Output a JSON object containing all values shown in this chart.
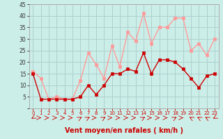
{
  "x": [
    0,
    1,
    2,
    3,
    4,
    5,
    6,
    7,
    8,
    9,
    10,
    11,
    12,
    13,
    14,
    15,
    16,
    17,
    18,
    19,
    20,
    21,
    22,
    23
  ],
  "mean_wind": [
    15,
    4,
    4,
    4,
    4,
    4,
    5,
    10,
    6,
    10,
    15,
    15,
    17,
    16,
    24,
    15,
    21,
    21,
    20,
    17,
    13,
    9,
    14,
    15
  ],
  "gust_wind": [
    16,
    13,
    4,
    5,
    4,
    4,
    12,
    24,
    19,
    13,
    27,
    18,
    33,
    29,
    41,
    28,
    35,
    35,
    39,
    39,
    25,
    28,
    23,
    30
  ],
  "xlabel": "Vent moyen/en rafales ( km/h )",
  "ylim": [
    0,
    45
  ],
  "yticks": [
    0,
    5,
    10,
    15,
    20,
    25,
    30,
    35,
    40,
    45
  ],
  "xticks": [
    0,
    1,
    2,
    3,
    4,
    5,
    6,
    7,
    8,
    9,
    10,
    11,
    12,
    13,
    14,
    15,
    16,
    17,
    18,
    19,
    20,
    21,
    22,
    23
  ],
  "mean_color": "#cc0000",
  "gust_color": "#ff9999",
  "bg_color": "#cceee8",
  "grid_color": "#aacccc",
  "marker_size": 2.5,
  "line_width": 1.0,
  "tick_color": "#cc0000",
  "xlabel_color": "#cc0000",
  "xlabel_fontsize": 7,
  "tick_fontsize": 5,
  "ytick_fontsize": 5.5
}
